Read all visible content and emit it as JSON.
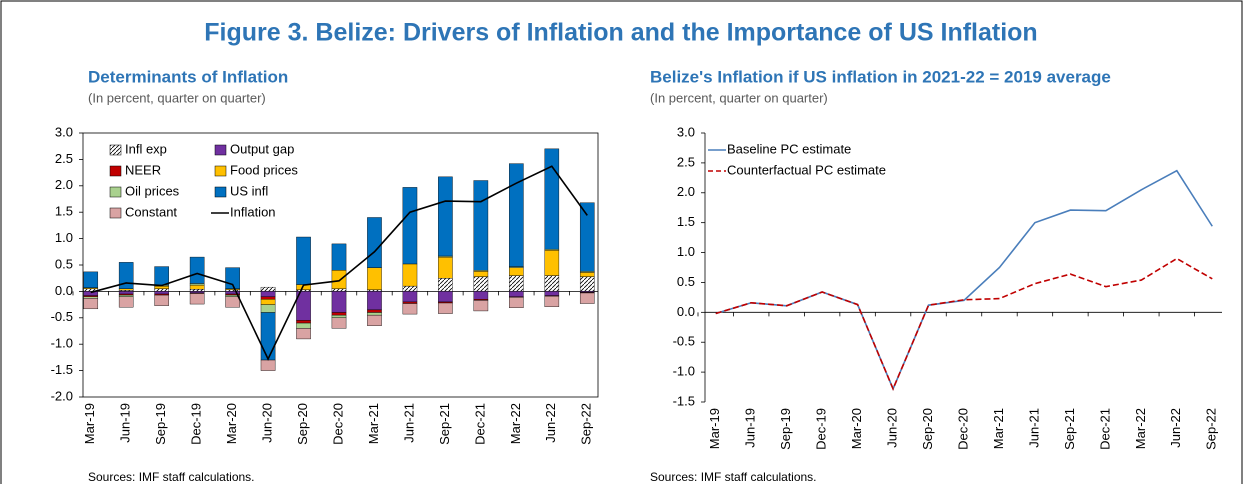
{
  "figure_title": "Figure 3. Belize: Drivers of Inflation and the Importance of US Inflation",
  "chart_data": [
    {
      "type": "bar",
      "stacked": true,
      "title": "Determinants of Inflation",
      "subtitle": "(In percent, quarter on quarter)",
      "source": "Sources: IMF staff calculations.",
      "categories": [
        "Mar-19",
        "Jun-19",
        "Sep-19",
        "Dec-19",
        "Mar-20",
        "Jun-20",
        "Sep-20",
        "Dec-20",
        "Mar-21",
        "Jun-21",
        "Sep-21",
        "Dec-21",
        "Mar-22",
        "Jun-22",
        "Sep-22"
      ],
      "series": [
        {
          "name": "Infl exp",
          "color": "hatch",
          "values": [
            0.05,
            0.02,
            0.05,
            0.04,
            0.03,
            0.08,
            0.03,
            0.05,
            0.03,
            0.1,
            0.25,
            0.28,
            0.3,
            0.3,
            0.28
          ]
        },
        {
          "name": "Output gap",
          "color": "#7030a0",
          "values": [
            -0.08,
            -0.05,
            -0.05,
            -0.03,
            -0.05,
            -0.1,
            -0.55,
            -0.4,
            -0.35,
            -0.2,
            -0.2,
            -0.15,
            -0.1,
            -0.08,
            -0.02
          ]
        },
        {
          "name": "NEER",
          "color": "#c00000",
          "values": [
            -0.02,
            -0.02,
            -0.02,
            -0.01,
            -0.02,
            -0.05,
            -0.05,
            -0.05,
            -0.05,
            -0.03,
            -0.02,
            -0.02,
            -0.01,
            -0.01,
            -0.01
          ]
        },
        {
          "name": "Food prices",
          "color": "#ffc000",
          "values": [
            0.02,
            0.03,
            0.05,
            0.08,
            0.02,
            -0.1,
            0.1,
            0.35,
            0.42,
            0.42,
            0.4,
            0.1,
            0.15,
            0.48,
            0.08
          ]
        },
        {
          "name": "Oil prices",
          "color": "#a9d18e",
          "values": [
            -0.03,
            -0.03,
            0.02,
            0.03,
            -0.03,
            -0.15,
            -0.1,
            -0.05,
            -0.05,
            0,
            0.02,
            0.02,
            0.02,
            0.02,
            0.02
          ]
        },
        {
          "name": "US infl",
          "color": "#0070c0",
          "values": [
            0.3,
            0.5,
            0.35,
            0.5,
            0.4,
            -0.9,
            0.9,
            0.5,
            0.95,
            1.45,
            1.5,
            1.7,
            1.95,
            1.9,
            1.3
          ]
        },
        {
          "name": "Constant",
          "color": "#d9a3a3",
          "values": [
            -0.2,
            -0.2,
            -0.2,
            -0.2,
            -0.2,
            -0.2,
            -0.2,
            -0.2,
            -0.2,
            -0.2,
            -0.2,
            -0.2,
            -0.2,
            -0.2,
            -0.2
          ]
        }
      ],
      "lines": [
        {
          "name": "Inflation",
          "color": "#000000",
          "values": [
            -0.02,
            0.16,
            0.11,
            0.34,
            0.13,
            -1.28,
            0.12,
            0.2,
            0.75,
            1.5,
            1.71,
            1.7,
            2.05,
            2.37,
            1.44
          ]
        }
      ],
      "ylim": [
        -2,
        3
      ],
      "yticks": [
        {
          "value": -2,
          "label": "-2.0"
        },
        -1.5,
        {
          "value": -1,
          "label": "-1.0"
        },
        -0.5,
        {
          "value": 0,
          "label": "0.0"
        },
        0.5,
        {
          "value": 1,
          "label": "1.0"
        },
        1.5,
        {
          "value": 2,
          "label": "2.0"
        },
        2.5,
        {
          "value": 3,
          "label": "3.0"
        }
      ]
    },
    {
      "type": "line",
      "title": "Belize's Inflation if US inflation in 2021-22 = 2019 average",
      "subtitle": "(In percent, quarter on quarter)",
      "source": "Sources: IMF staff calculations.",
      "categories": [
        "Mar-19",
        "Jun-19",
        "Sep-19",
        "Dec-19",
        "Mar-20",
        "Jun-20",
        "Sep-20",
        "Dec-20",
        "Mar-21",
        "Jun-21",
        "Sep-21",
        "Dec-21",
        "Mar-22",
        "Jun-22",
        "Sep-22"
      ],
      "series": [
        {
          "name": "Baseline PC estimate",
          "color": "#4a7ebb",
          "dash": false,
          "values": [
            -0.02,
            0.16,
            0.11,
            0.34,
            0.13,
            -1.28,
            0.12,
            0.2,
            0.75,
            1.5,
            1.71,
            1.7,
            2.05,
            2.37,
            1.44
          ]
        },
        {
          "name": "Counterfactual PC estimate",
          "color": "#c00000",
          "dash": true,
          "values": [
            -0.02,
            0.16,
            0.11,
            0.34,
            0.13,
            -1.28,
            0.12,
            0.21,
            0.23,
            0.48,
            0.64,
            0.43,
            0.54,
            0.9,
            0.56
          ]
        }
      ],
      "ylim": [
        -1.5,
        3
      ],
      "yticks": [
        -1.5,
        {
          "value": -1,
          "label": "-1.0"
        },
        -0.5,
        {
          "value": 0,
          "label": "0.0"
        },
        0.5,
        {
          "value": 1,
          "label": "1.0"
        },
        1.5,
        {
          "value": 2,
          "label": "2.0"
        },
        2.5,
        {
          "value": 3,
          "label": "3.0"
        }
      ]
    }
  ]
}
